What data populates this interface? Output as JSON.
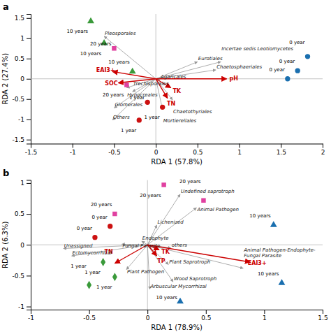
{
  "chart_data": [
    {
      "type": "biplot",
      "title": "a",
      "xlabel": "RDA 1 (57.8%)",
      "ylabel": "RDA 2 (27.4%)",
      "xlim": [
        -1.5,
        2.0
      ],
      "ylim": [
        -1.6,
        1.6
      ],
      "xticks": [
        -1.5,
        -1,
        -0.5,
        0,
        0.5,
        1,
        1.5,
        2
      ],
      "yticks": [
        -1.5,
        -1,
        -0.5,
        0,
        0.5,
        1,
        1.5
      ],
      "grid": false,
      "samples": [
        {
          "label": "0 year",
          "x": 1.82,
          "y": 0.55,
          "color": "#1a6faf",
          "marker": "circle"
        },
        {
          "label": "0 year",
          "x": 1.7,
          "y": 0.2,
          "color": "#1a6faf",
          "marker": "circle"
        },
        {
          "label": "0 year",
          "x": 1.58,
          "y": 0.0,
          "color": "#1a6faf",
          "marker": "circle"
        },
        {
          "label": "10 years",
          "x": -0.78,
          "y": 1.42,
          "color": "#3a9a3a",
          "marker": "triangle"
        },
        {
          "label": "10 years",
          "x": -0.62,
          "y": 0.88,
          "color": "#3a9a3a",
          "marker": "triangle"
        },
        {
          "label": "10 years",
          "x": -0.28,
          "y": 0.18,
          "color": "#3a9a3a",
          "marker": "triangle"
        },
        {
          "label": "20 years",
          "x": -0.5,
          "y": 0.75,
          "color": "#e040a0",
          "marker": "square"
        },
        {
          "label": "20 years",
          "x": -0.35,
          "y": -0.15,
          "color": "#e040a0",
          "marker": "square"
        },
        {
          "label": "1 year",
          "x": -0.1,
          "y": -0.58,
          "color": "#cc1111",
          "marker": "circle"
        },
        {
          "label": "1 year",
          "x": 0.08,
          "y": -0.7,
          "color": "#cc1111",
          "marker": "circle"
        },
        {
          "label": "1 year",
          "x": -0.2,
          "y": -1.02,
          "color": "#cc1111",
          "marker": "circle"
        }
      ],
      "arrows": [
        {
          "label": "EAI3+",
          "x": -0.52,
          "y": 0.18,
          "color": "#cc0000"
        },
        {
          "label": "SOC",
          "x": -0.45,
          "y": -0.1,
          "color": "#cc0000"
        },
        {
          "label": "pH",
          "x": 0.85,
          "y": 0.0,
          "color": "#cc0000"
        },
        {
          "label": "TK",
          "x": 0.18,
          "y": -0.22,
          "color": "#cc0000"
        },
        {
          "label": "TN",
          "x": 0.14,
          "y": -0.48,
          "color": "#cc0000"
        }
      ],
      "species": [
        {
          "label": "Pleosporales",
          "x": -0.62,
          "y": 1.05
        },
        {
          "label": "Eurotiales",
          "x": 0.5,
          "y": 0.42
        },
        {
          "label": "Incertae sedis Leotiomycetes",
          "x": 0.78,
          "y": 0.42
        },
        {
          "label": "Chaetosphaeriales",
          "x": 0.72,
          "y": 0.22
        },
        {
          "label": "Agaricales",
          "x": 0.05,
          "y": -0.03
        },
        {
          "label": "Hypocreales",
          "x": -0.35,
          "y": -0.22
        },
        {
          "label": "Trechisporales",
          "x": -0.28,
          "y": -0.32
        },
        {
          "label": "Chaetothyriales",
          "x": 0.2,
          "y": -0.52
        },
        {
          "label": "Mortierellales",
          "x": 0.08,
          "y": -0.75
        },
        {
          "label": "Glomerales",
          "x": -0.5,
          "y": -0.72
        },
        {
          "label": "Others",
          "x": -0.52,
          "y": -1.02
        }
      ]
    },
    {
      "type": "biplot",
      "title": "b",
      "xlabel": "RDA 1 (78.9%)",
      "ylabel": "RDA 2 (6.3%)",
      "xlim": [
        -1.0,
        1.5
      ],
      "ylim": [
        -1.05,
        1.05
      ],
      "xticks": [
        -1,
        -0.5,
        0,
        0.5,
        1,
        1.5
      ],
      "yticks": [
        -1,
        -0.5,
        0,
        0.5,
        1
      ],
      "grid": false,
      "samples": [
        {
          "label": "0 year",
          "x": -0.32,
          "y": 0.3,
          "color": "#cc1111",
          "marker": "circle"
        },
        {
          "label": "0 year",
          "x": -0.45,
          "y": 0.12,
          "color": "#cc1111",
          "marker": "circle"
        },
        {
          "label": "10 years",
          "x": 1.08,
          "y": 0.32,
          "color": "#1a6faf",
          "marker": "triangle"
        },
        {
          "label": "10 years",
          "x": 1.15,
          "y": -0.62,
          "color": "#1a6faf",
          "marker": "triangle"
        },
        {
          "label": "10 years",
          "x": 0.28,
          "y": -0.92,
          "color": "#1a6faf",
          "marker": "triangle"
        },
        {
          "label": "20 years",
          "x": 0.14,
          "y": 0.97,
          "color": "#e040a0",
          "marker": "square"
        },
        {
          "label": "20 years",
          "x": 0.48,
          "y": 0.72,
          "color": "#e040a0",
          "marker": "square"
        },
        {
          "label": "20 years",
          "x": -0.28,
          "y": 0.5,
          "color": "#e040a0",
          "marker": "square"
        },
        {
          "label": "1 year",
          "x": -0.38,
          "y": -0.28,
          "color": "#3a9a3a",
          "marker": "diamond"
        },
        {
          "label": "1 year",
          "x": -0.28,
          "y": -0.52,
          "color": "#3a9a3a",
          "marker": "diamond"
        },
        {
          "label": "1 year",
          "x": -0.5,
          "y": -0.65,
          "color": "#3a9a3a",
          "marker": "diamond"
        }
      ],
      "arrows": [
        {
          "label": "EAI3+",
          "x": 0.88,
          "y": -0.28,
          "color": "#cc0000"
        },
        {
          "label": "TN",
          "x": -0.28,
          "y": -0.3,
          "color": "#cc0000"
        },
        {
          "label": "TK",
          "x": 0.1,
          "y": -0.08,
          "color": "#cc0000"
        },
        {
          "label": "TP",
          "x": 0.08,
          "y": -0.18,
          "color": "#cc0000"
        }
      ],
      "species": [
        {
          "label": "Undefined saprotroph",
          "x": 0.28,
          "y": 0.82
        },
        {
          "label": "Animal Pathogen",
          "x": 0.42,
          "y": 0.6
        },
        {
          "label": "Lichenized",
          "x": 0.08,
          "y": 0.32
        },
        {
          "label": "Endophyte",
          "x": -0.05,
          "y": 0.06
        },
        {
          "label": "Fungal Parasite",
          "x": -0.22,
          "y": 0.01
        },
        {
          "label": "Unassigned",
          "x": -0.72,
          "y": -0.06
        },
        {
          "label": "Ectomycorrhizal",
          "x": -0.65,
          "y": -0.18
        },
        {
          "label": "Plant Saprotroph",
          "x": 0.18,
          "y": -0.32
        },
        {
          "label": "Plant Pathogen",
          "x": -0.18,
          "y": -0.4
        },
        {
          "label": "Wood Saprotroph",
          "x": 0.22,
          "y": -0.6
        },
        {
          "label": "Arbuscular Mycorrhizal",
          "x": 0.02,
          "y": -0.72
        },
        {
          "label": "Animal Pathogen-Endophyte-\nFungal Parasite",
          "x": 0.82,
          "y": -0.38
        },
        {
          "label": "others",
          "x": 0.2,
          "y": -0.05
        }
      ]
    }
  ]
}
